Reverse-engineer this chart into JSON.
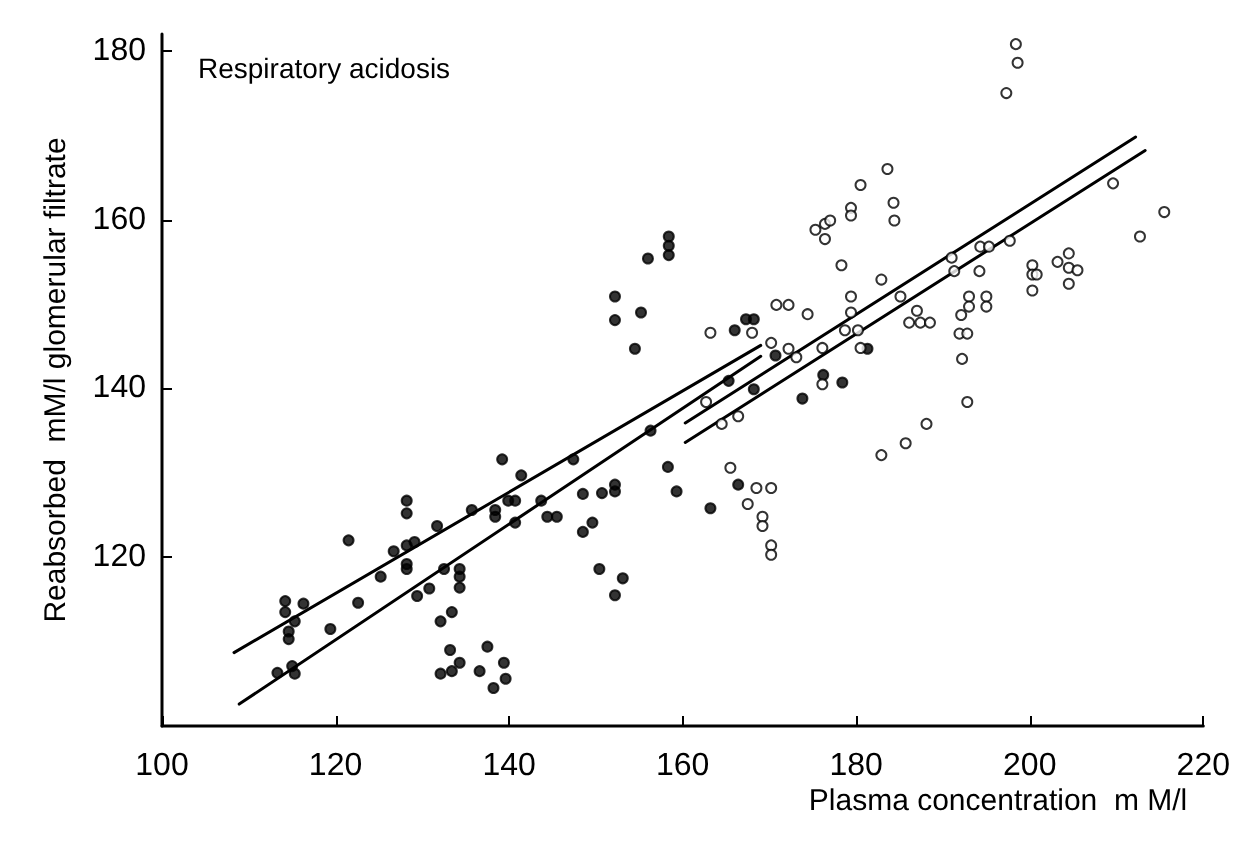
{
  "chart_data": {
    "type": "scatter",
    "title": "Respiratory acidosis",
    "xlabel": "Plasma concentration  m M/l",
    "ylabel": "Reabsorbed  mM/l glomerular filtrate",
    "xlim": [
      100,
      220
    ],
    "xticks": [
      100,
      120,
      140,
      160,
      180,
      200,
      220
    ],
    "ylim": [
      100,
      182
    ],
    "yticks": [
      120,
      140,
      160,
      180
    ],
    "grid": false,
    "legend": false,
    "marker": "circle",
    "series": [
      {
        "color": "#000000",
        "x": [
          114.2,
          114.2,
          116.3,
          115.3,
          114.6,
          114.6,
          119.4,
          113.3,
          115.0,
          115.3,
          122.6,
          125.2,
          126.7,
          128.2,
          128.2,
          128.2,
          129.1,
          129.4,
          130.8,
          131.7,
          128.2,
          128.2,
          132.5,
          134.3,
          134.3,
          134.3,
          132.1,
          133.4,
          133.2,
          134.3,
          132.1,
          133.4,
          137.5,
          136.6,
          139.4,
          139.6,
          138.2,
          135.7,
          138.4,
          138.4,
          139.2,
          139.9,
          140.7,
          141.4,
          140.7,
          143.7,
          144.4,
          145.5,
          148.5,
          148.5,
          149.6,
          150.4,
          152.2,
          153.1,
          150.7,
          152.2,
          152.2,
          147.4,
          152.2,
          152.2,
          155.2,
          154.5,
          156.0,
          158.4,
          158.4,
          158.4,
          156.3,
          158.3,
          159.3,
          163.2,
          121.5,
          166.0,
          167.3,
          168.2,
          165.3,
          168.2,
          170.7,
          173.8,
          176.2,
          178.4,
          181.3,
          166.4
        ],
        "values": [
          114.8,
          113.5,
          114.5,
          112.4,
          111.2,
          110.3,
          111.5,
          106.3,
          107.1,
          106.2,
          114.6,
          117.7,
          120.7,
          121.4,
          119.2,
          118.6,
          121.8,
          115.4,
          116.3,
          123.7,
          126.7,
          125.2,
          118.6,
          118.6,
          117.7,
          116.4,
          112.4,
          113.5,
          109.0,
          107.5,
          106.2,
          106.5,
          109.4,
          106.5,
          107.5,
          105.6,
          104.5,
          125.6,
          125.6,
          124.8,
          131.6,
          126.7,
          126.7,
          129.7,
          124.1,
          126.7,
          124.8,
          124.8,
          127.5,
          123.0,
          124.1,
          118.6,
          115.5,
          117.5,
          127.6,
          127.8,
          128.6,
          131.6,
          150.9,
          148.1,
          149.0,
          144.7,
          155.4,
          158.0,
          156.9,
          155.8,
          135.0,
          130.7,
          127.8,
          125.8,
          122.0,
          146.9,
          148.2,
          148.2,
          140.9,
          139.9,
          143.9,
          138.8,
          141.6,
          140.7,
          144.7,
          128.6
        ]
      },
      {
        "color": "#ffffff",
        "x": [
          163.2,
          162.7,
          164.5,
          166.4,
          165.5,
          168.5,
          170.2,
          167.5,
          169.2,
          169.2,
          170.2,
          170.2,
          168.0,
          170.2,
          170.8,
          172.2,
          172.2,
          173.1,
          174.4,
          176.1,
          176.1,
          175.3,
          176.4,
          176.4,
          177.0,
          179.4,
          179.4,
          180.5,
          183.6,
          184.3,
          184.4,
          178.3,
          182.9,
          179.4,
          179.4,
          178.7,
          180.2,
          180.5,
          185.1,
          187.0,
          186.1,
          187.4,
          188.5,
          188.1,
          185.7,
          182.9,
          191.0,
          191.3,
          192.1,
          191.9,
          192.8,
          192.2,
          192.8,
          193.0,
          193.0,
          195.0,
          195.0,
          194.2,
          194.3,
          195.3,
          197.7,
          197.3,
          198.6,
          198.4,
          200.3,
          200.3,
          200.8,
          200.3,
          203.2,
          204.5,
          204.5,
          205.5,
          204.5,
          209.6,
          212.7,
          215.5
        ],
        "values": [
          146.6,
          138.4,
          135.8,
          136.7,
          130.6,
          128.2,
          128.2,
          126.3,
          124.8,
          123.7,
          121.4,
          120.3,
          146.6,
          145.4,
          149.9,
          149.9,
          144.7,
          143.7,
          148.8,
          144.8,
          140.5,
          158.8,
          159.5,
          157.7,
          159.9,
          161.4,
          160.5,
          164.1,
          166.0,
          162.0,
          159.9,
          154.6,
          152.9,
          150.9,
          149.0,
          146.9,
          146.9,
          144.8,
          150.9,
          149.2,
          147.8,
          147.8,
          147.8,
          135.8,
          133.5,
          132.1,
          155.5,
          153.9,
          148.7,
          146.5,
          146.5,
          143.5,
          138.4,
          150.9,
          149.7,
          150.9,
          149.7,
          153.9,
          156.8,
          156.8,
          157.5,
          175.0,
          178.6,
          180.8,
          154.6,
          153.5,
          153.5,
          151.6,
          155.0,
          156.0,
          154.3,
          154.0,
          152.4,
          164.3,
          158.0,
          160.9
        ]
      },
      {
        "type": "line",
        "color": "#000000",
        "marker": "none",
        "line_style": "solid",
        "x": [
          108.3,
          169.0
        ],
        "values": [
          108.7,
          145.1
        ]
      },
      {
        "type": "line",
        "color": "#000000",
        "marker": "none",
        "line_style": "solid",
        "x": [
          108.9,
          169.0
        ],
        "values": [
          102.6,
          143.8
        ]
      },
      {
        "type": "line",
        "color": "#000000",
        "marker": "none",
        "line_style": "solid",
        "x": [
          160.3,
          212.2
        ],
        "values": [
          135.9,
          169.8
        ]
      },
      {
        "type": "line",
        "color": "#000000",
        "marker": "none",
        "line_style": "solid",
        "x": [
          160.3,
          213.3
        ],
        "values": [
          133.6,
          168.2
        ]
      }
    ]
  }
}
